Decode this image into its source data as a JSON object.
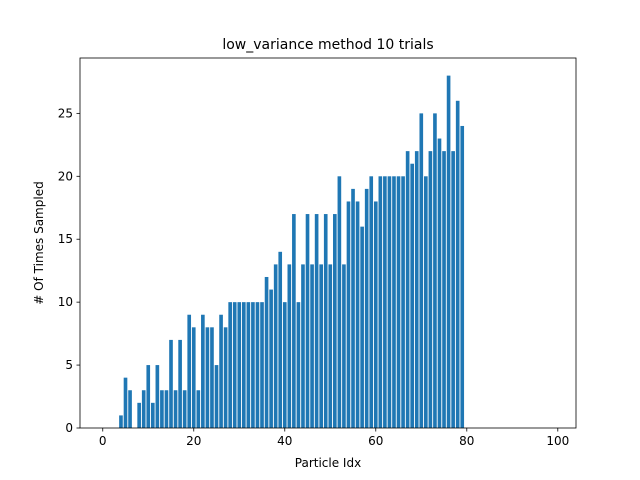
{
  "chart_data": {
    "type": "bar",
    "title": "low_variance method 10 trials",
    "xlabel": "Particle Idx",
    "ylabel": "# Of Times Sampled",
    "xlim": [
      -5,
      104
    ],
    "ylim": [
      0,
      29.4
    ],
    "xticks": [
      0,
      20,
      40,
      60,
      80,
      100
    ],
    "yticks": [
      0,
      5,
      10,
      15,
      20,
      25
    ],
    "grid": false,
    "bar_color": "#1f77b4",
    "x": [
      0,
      1,
      2,
      3,
      4,
      5,
      6,
      7,
      8,
      9,
      10,
      11,
      12,
      13,
      14,
      15,
      16,
      17,
      18,
      19,
      20,
      21,
      22,
      23,
      24,
      25,
      26,
      27,
      28,
      29,
      30,
      31,
      32,
      33,
      34,
      35,
      36,
      37,
      38,
      39,
      40,
      41,
      42,
      43,
      44,
      45,
      46,
      47,
      48,
      49,
      50,
      51,
      52,
      53,
      54,
      55,
      56,
      57,
      58,
      59,
      60,
      61,
      62,
      63,
      64,
      65,
      66,
      67,
      68,
      69,
      70,
      71,
      72,
      73,
      74,
      75,
      76,
      77,
      78,
      79,
      80,
      81,
      82,
      83,
      84,
      85,
      86,
      87,
      88,
      89,
      90,
      91,
      92,
      93,
      94,
      95,
      96,
      97,
      98,
      99
    ],
    "values": [
      0,
      0,
      0,
      0,
      1,
      4,
      3,
      0,
      2,
      3,
      5,
      2,
      5,
      3,
      3,
      7,
      3,
      7,
      3,
      9,
      8,
      3,
      9,
      8,
      8,
      5,
      9,
      8,
      10,
      10,
      10,
      10,
      10,
      10,
      10,
      10,
      12,
      11,
      13,
      14,
      10,
      13,
      17,
      10,
      13,
      17,
      13,
      17,
      13,
      17,
      13,
      17,
      20,
      13,
      18,
      19,
      18,
      16,
      19,
      20,
      18,
      20,
      20,
      20,
      20,
      20,
      20,
      22,
      21,
      22,
      25,
      20,
      22,
      25,
      23,
      22,
      28,
      22,
      26,
      24,
      0,
      0,
      0,
      0,
      0,
      0,
      0,
      0,
      0,
      0,
      0,
      0,
      0,
      0,
      0,
      0,
      0,
      0,
      0,
      0
    ]
  }
}
